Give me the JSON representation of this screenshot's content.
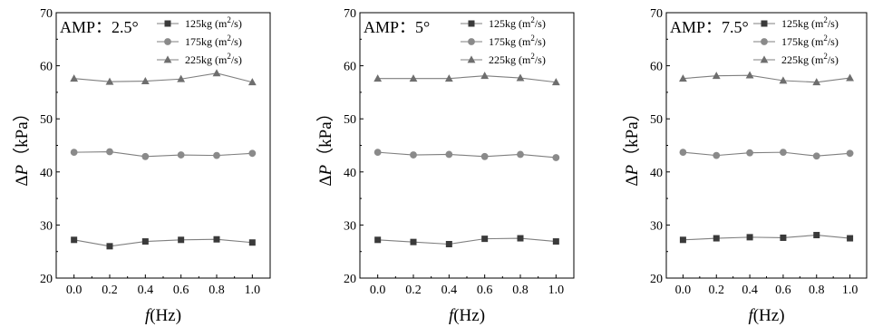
{
  "chart_data": [
    {
      "type": "line",
      "annotation": "AMP：2.5°",
      "xlabel": "f(Hz)",
      "ylabel": "ΔP（kPa）",
      "x": [
        0.0,
        0.2,
        0.4,
        0.6,
        0.8,
        1.0
      ],
      "xticks": [
        "0.0",
        "0.2",
        "0.4",
        "0.6",
        "0.8",
        "1.0"
      ],
      "yticks": [
        "20",
        "30",
        "40",
        "50",
        "60",
        "70"
      ],
      "xlim": [
        -0.1,
        1.1
      ],
      "ylim": [
        20,
        70
      ],
      "legend_position": "top-right",
      "grid": false,
      "series": [
        {
          "name": "125kg (m2/s)",
          "marker": "square",
          "values": [
            27.2,
            26.0,
            26.9,
            27.2,
            27.3,
            26.7
          ]
        },
        {
          "name": "175kg (m2/s)",
          "marker": "circle",
          "values": [
            43.7,
            43.8,
            42.9,
            43.2,
            43.1,
            43.5
          ]
        },
        {
          "name": "225kg (m2/s)",
          "marker": "triangle",
          "values": [
            57.6,
            57.0,
            57.1,
            57.5,
            58.6,
            56.9
          ]
        }
      ]
    },
    {
      "type": "line",
      "annotation": "AMP：5°",
      "xlabel": "f(Hz)",
      "ylabel": "ΔP（kPa）",
      "x": [
        0.0,
        0.2,
        0.4,
        0.6,
        0.8,
        1.0
      ],
      "xticks": [
        "0.0",
        "0.2",
        "0.4",
        "0.6",
        "0.8",
        "1.0"
      ],
      "yticks": [
        "20",
        "30",
        "40",
        "50",
        "60",
        "70"
      ],
      "xlim": [
        -0.1,
        1.1
      ],
      "ylim": [
        20,
        70
      ],
      "legend_position": "top-right",
      "grid": false,
      "series": [
        {
          "name": "125kg (m2/s)",
          "marker": "square",
          "values": [
            27.2,
            26.8,
            26.4,
            27.4,
            27.5,
            26.9
          ]
        },
        {
          "name": "175kg (m2/s)",
          "marker": "circle",
          "values": [
            43.7,
            43.2,
            43.3,
            42.9,
            43.3,
            42.7
          ]
        },
        {
          "name": "225kg (m2/s)",
          "marker": "triangle",
          "values": [
            57.6,
            57.6,
            57.6,
            58.1,
            57.7,
            56.9
          ]
        }
      ]
    },
    {
      "type": "line",
      "annotation": "AMP：7.5°",
      "xlabel": "f(Hz)",
      "ylabel": "ΔP（kPa）",
      "x": [
        0.0,
        0.2,
        0.4,
        0.6,
        0.8,
        1.0
      ],
      "xticks": [
        "0.0",
        "0.2",
        "0.4",
        "0.6",
        "0.8",
        "1.0"
      ],
      "yticks": [
        "20",
        "30",
        "40",
        "50",
        "60",
        "70"
      ],
      "xlim": [
        -0.1,
        1.1
      ],
      "ylim": [
        20,
        70
      ],
      "legend_position": "top-right",
      "grid": false,
      "series": [
        {
          "name": "125kg (m2/s)",
          "marker": "square",
          "values": [
            27.2,
            27.5,
            27.7,
            27.6,
            28.1,
            27.5
          ]
        },
        {
          "name": "175kg (m2/s)",
          "marker": "circle",
          "values": [
            43.7,
            43.1,
            43.6,
            43.7,
            43.0,
            43.5
          ]
        },
        {
          "name": "225kg (m2/s)",
          "marker": "triangle",
          "values": [
            57.6,
            58.1,
            58.2,
            57.2,
            56.9,
            57.7
          ]
        }
      ]
    }
  ],
  "colors": {
    "axis": "#000000",
    "line": "#7f7f7f",
    "square_marker": "#3a3a3a",
    "circle_marker": "#8a8a8a",
    "triangle_marker": "#6e6e6e"
  }
}
